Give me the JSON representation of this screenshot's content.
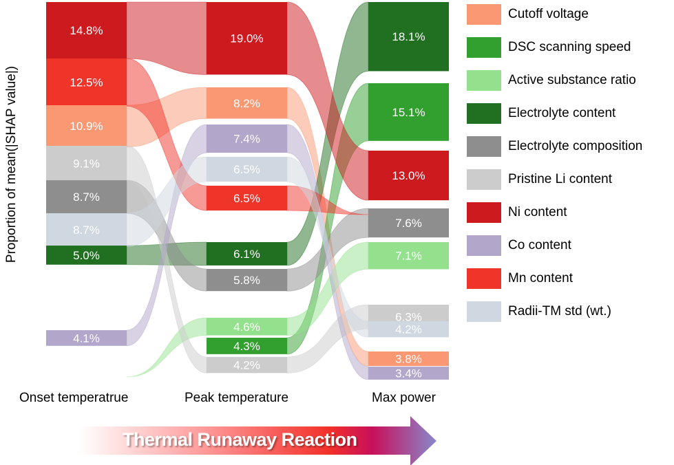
{
  "chart_data": {
    "type": "sankey",
    "ylabel": "Proportion of mean(|SHAP value|)",
    "columns": [
      "Onset temperatrue",
      "Peak temperature",
      "Max power"
    ],
    "features": [
      {
        "name": "Cutoff voltage",
        "color": "#fa9874"
      },
      {
        "name": "DSC scanning speed",
        "color": "#32a02f"
      },
      {
        "name": "Active substance ratio",
        "color": "#93e18d"
      },
      {
        "name": "Electrolyte content",
        "color": "#216f21"
      },
      {
        "name": "Electrolyte composition",
        "color": "#8e8e8e"
      },
      {
        "name": "Pristine Li content",
        "color": "#cccccc"
      },
      {
        "name": "Ni content",
        "color": "#cd1a1f"
      },
      {
        "name": "Co content",
        "color": "#b2a6ca"
      },
      {
        "name": "Mn content",
        "color": "#ef3429"
      },
      {
        "name": "Radii-TM std (wt.)",
        "color": "#cfd7e1"
      }
    ],
    "nodes": [
      [
        {
          "feature": "Ni content",
          "value": 14.8,
          "label": "14.8%"
        },
        {
          "feature": "Mn content",
          "value": 12.5,
          "label": "12.5%"
        },
        {
          "feature": "Cutoff voltage",
          "value": 10.9,
          "label": "10.9%"
        },
        {
          "feature": "Pristine Li content",
          "value": 9.1,
          "label": "9.1%"
        },
        {
          "feature": "Electrolyte composition",
          "value": 8.7,
          "label": "8.7%"
        },
        {
          "feature": "Radii-TM std (wt.)",
          "value": 8.7,
          "label": "8.7%"
        },
        {
          "feature": "Electrolyte content",
          "value": 5.0,
          "label": "5.0%"
        },
        {
          "feature": "Co content",
          "value": 4.1,
          "label": "4.1%"
        },
        {
          "feature": "Active substance ratio",
          "value": 0,
          "label": ""
        }
      ],
      [
        {
          "feature": "Ni content",
          "value": 19.0,
          "label": "19.0%"
        },
        {
          "feature": "Cutoff voltage",
          "value": 8.2,
          "label": "8.2%"
        },
        {
          "feature": "Co content",
          "value": 7.4,
          "label": "7.4%"
        },
        {
          "feature": "Radii-TM std (wt.)",
          "value": 6.5,
          "label": "6.5%"
        },
        {
          "feature": "Mn content",
          "value": 6.5,
          "label": "6.5%"
        },
        {
          "feature": "Electrolyte content",
          "value": 6.1,
          "label": "6.1%"
        },
        {
          "feature": "Electrolyte composition",
          "value": 5.8,
          "label": "5.8%"
        },
        {
          "feature": "Active substance ratio",
          "value": 4.6,
          "label": "4.6%"
        },
        {
          "feature": "DSC scanning speed",
          "value": 4.3,
          "label": "4.3%"
        },
        {
          "feature": "Pristine Li content",
          "value": 4.2,
          "label": "4.2%"
        }
      ],
      [
        {
          "feature": "Electrolyte content",
          "value": 18.1,
          "label": "18.1%"
        },
        {
          "feature": "DSC scanning speed",
          "value": 15.1,
          "label": "15.1%"
        },
        {
          "feature": "Ni content",
          "value": 13.0,
          "label": "13.0%"
        },
        {
          "feature": "Electrolyte composition",
          "value": 7.6,
          "label": "7.6%"
        },
        {
          "feature": "Active substance ratio",
          "value": 7.1,
          "label": "7.1%"
        },
        {
          "feature": "Pristine Li content",
          "value": 6.3,
          "label": "6.3%"
        },
        {
          "feature": "Radii-TM std (wt.)",
          "value": 4.2,
          "label": "4.2%"
        },
        {
          "feature": "Cutoff voltage",
          "value": 3.8,
          "label": "3.8%"
        },
        {
          "feature": "Co content",
          "value": 3.4,
          "label": "3.4%"
        },
        {
          "feature": "Mn content",
          "value": 0,
          "label": ""
        }
      ]
    ]
  },
  "arrow": {
    "label": "Thermal Runaway Reaction"
  }
}
